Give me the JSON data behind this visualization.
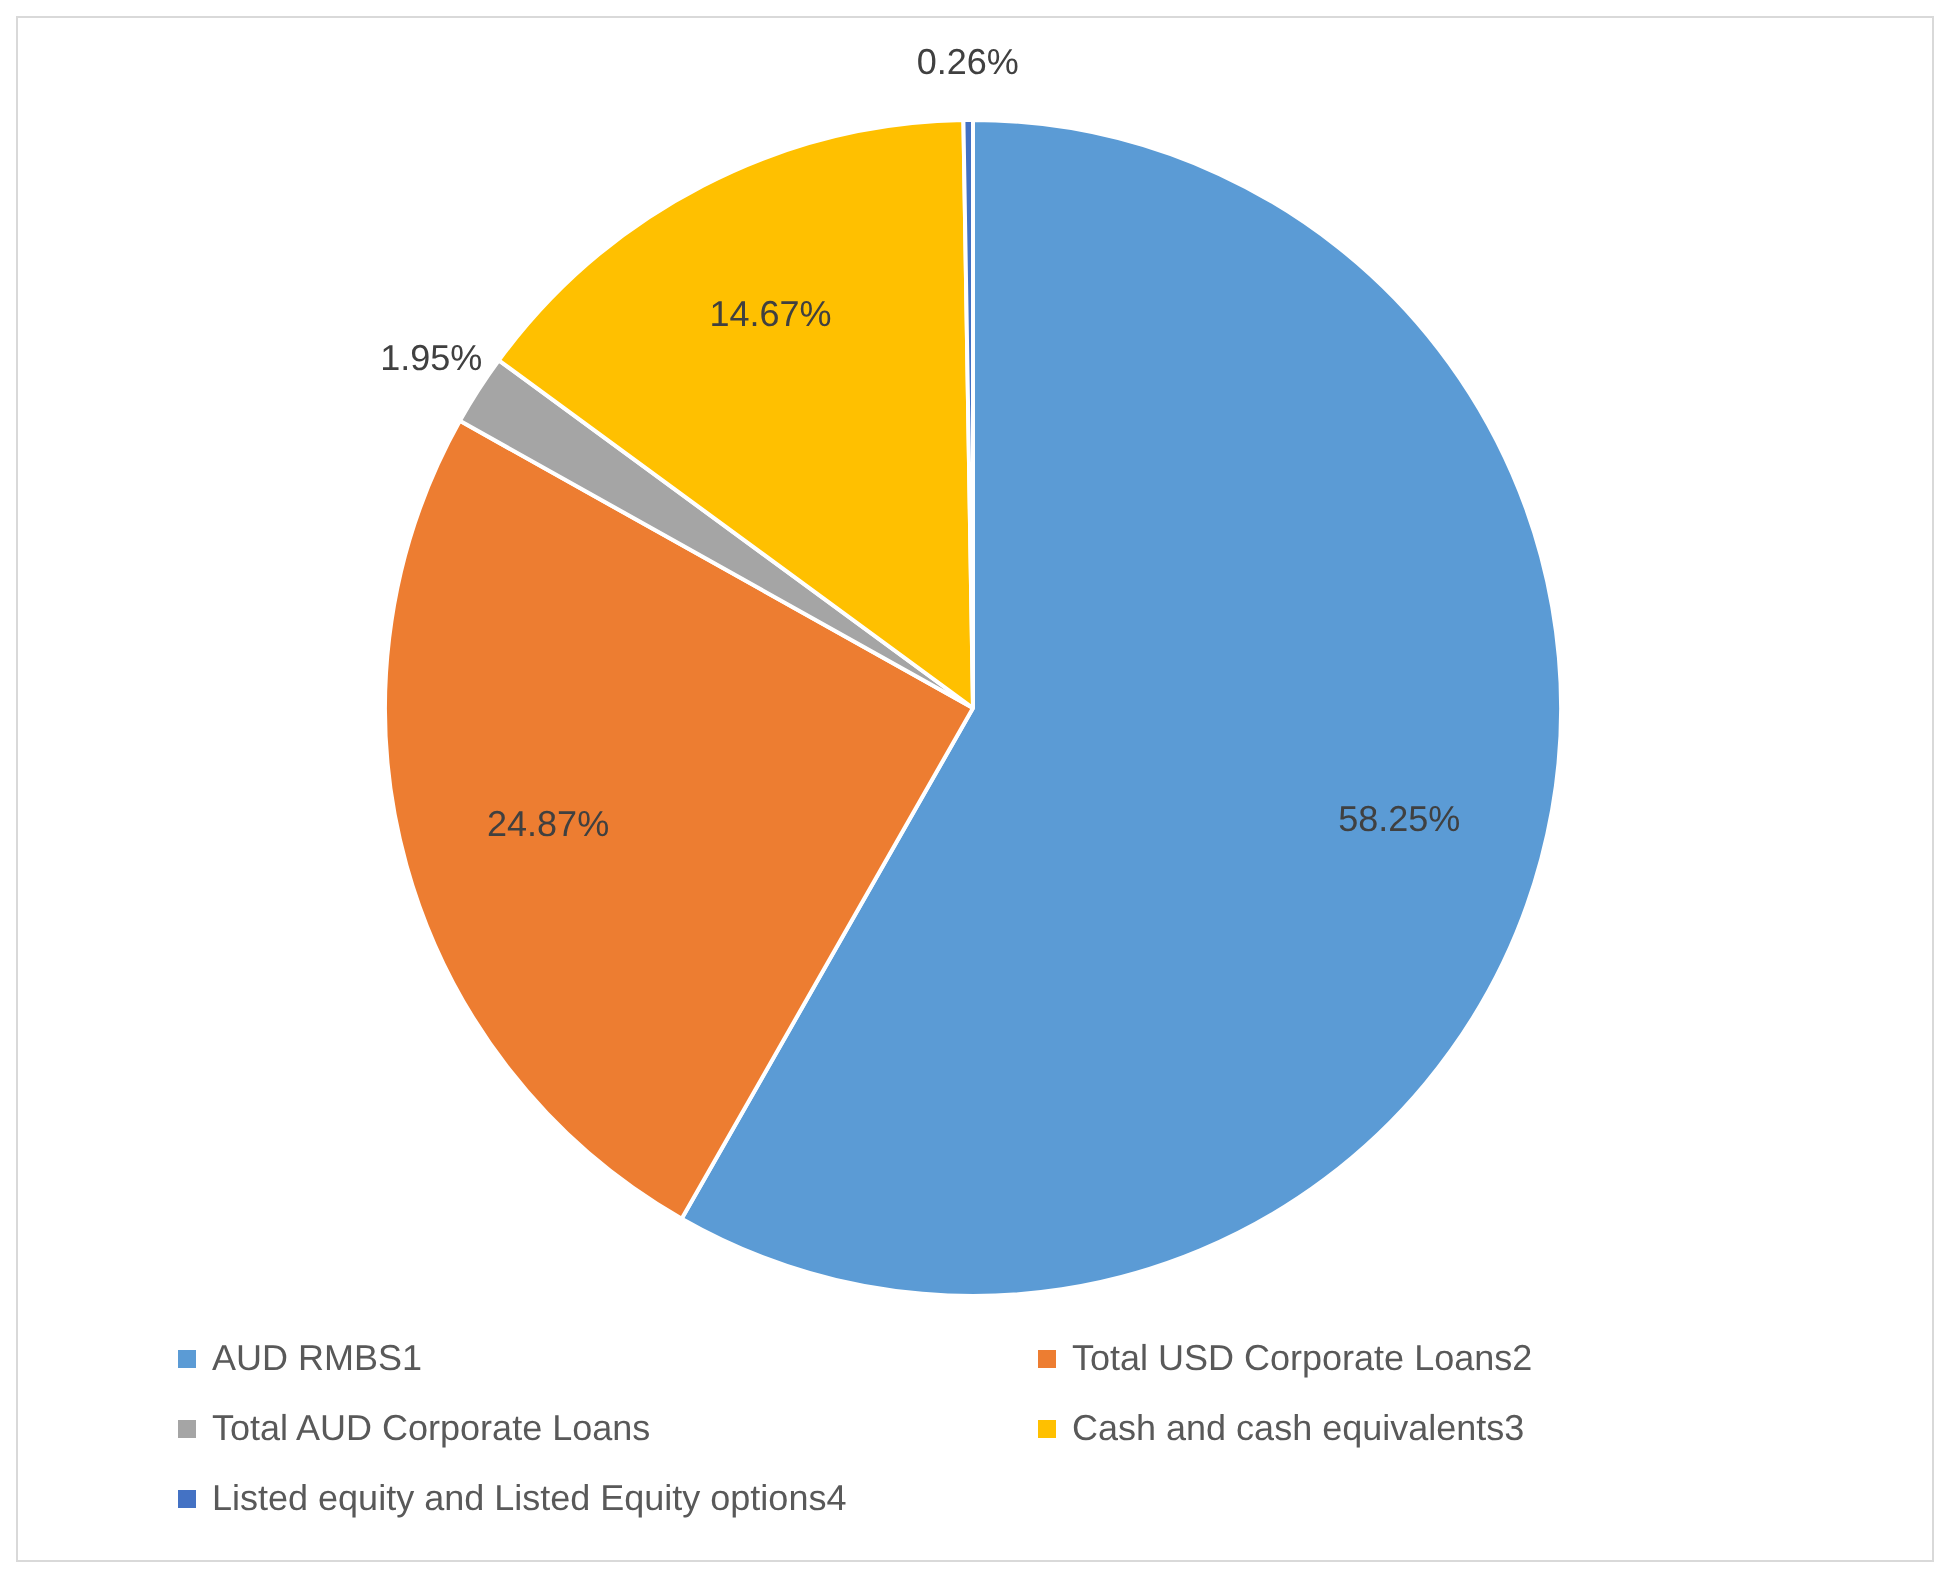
{
  "chart_data": {
    "type": "pie",
    "categories": [
      "AUD RMBS1",
      "Total USD Corporate Loans2",
      "Total AUD Corporate Loans",
      "Cash and cash equivalents3",
      "Listed equity and Listed Equity options4"
    ],
    "values": [
      58.25,
      24.87,
      1.95,
      14.67,
      0.26
    ],
    "colors": [
      "#5b9bd5",
      "#ed7d31",
      "#a5a5a5",
      "#ffc000",
      "#4472c4"
    ],
    "value_labels": [
      "58.25%",
      "24.87%",
      "1.95%",
      "14.67%",
      "0.26%"
    ],
    "legend": "bottom"
  }
}
